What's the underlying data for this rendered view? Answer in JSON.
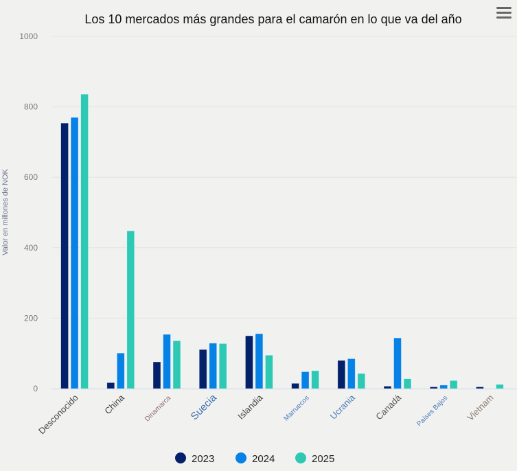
{
  "menu_icon": "hamburger-menu-icon",
  "chart_data": {
    "type": "bar",
    "title": "Los 10 mercados más grandes para el camarón en lo que va del año",
    "xlabel": "",
    "ylabel": "Valor en millones de NOK",
    "ylim": [
      0,
      1000
    ],
    "yticks": [
      0,
      200,
      400,
      600,
      800,
      1000
    ],
    "grid": true,
    "legend_position": "bottom-center",
    "categories": [
      "Desconocido",
      "China",
      "Dinamarca",
      "Suecia",
      "Islandia",
      "Marruecos",
      "Ucrania",
      "Canadá",
      "Países Bajos",
      "Vietnam"
    ],
    "category_label_colors": [
      "#444444",
      "#444444",
      "#8a6a6a",
      "#3f6fb0",
      "#444444",
      "#4a78b8",
      "#4a78b8",
      "#555555",
      "#4a78b8",
      "#8a7a70"
    ],
    "category_label_sizes": [
      "md",
      "md",
      "sm",
      "lg",
      "md",
      "sm",
      "md",
      "md",
      "sm",
      "md"
    ],
    "series": [
      {
        "name": "2023",
        "color": "#03206b",
        "values": [
          754,
          17,
          76,
          111,
          150,
          15,
          80,
          7,
          5,
          5
        ]
      },
      {
        "name": "2024",
        "color": "#0682e6",
        "values": [
          770,
          101,
          154,
          129,
          156,
          48,
          85,
          144,
          10,
          0
        ]
      },
      {
        "name": "2025",
        "color": "#2ec9b5",
        "values": [
          836,
          448,
          136,
          128,
          95,
          51,
          43,
          28,
          23,
          12
        ]
      }
    ]
  }
}
